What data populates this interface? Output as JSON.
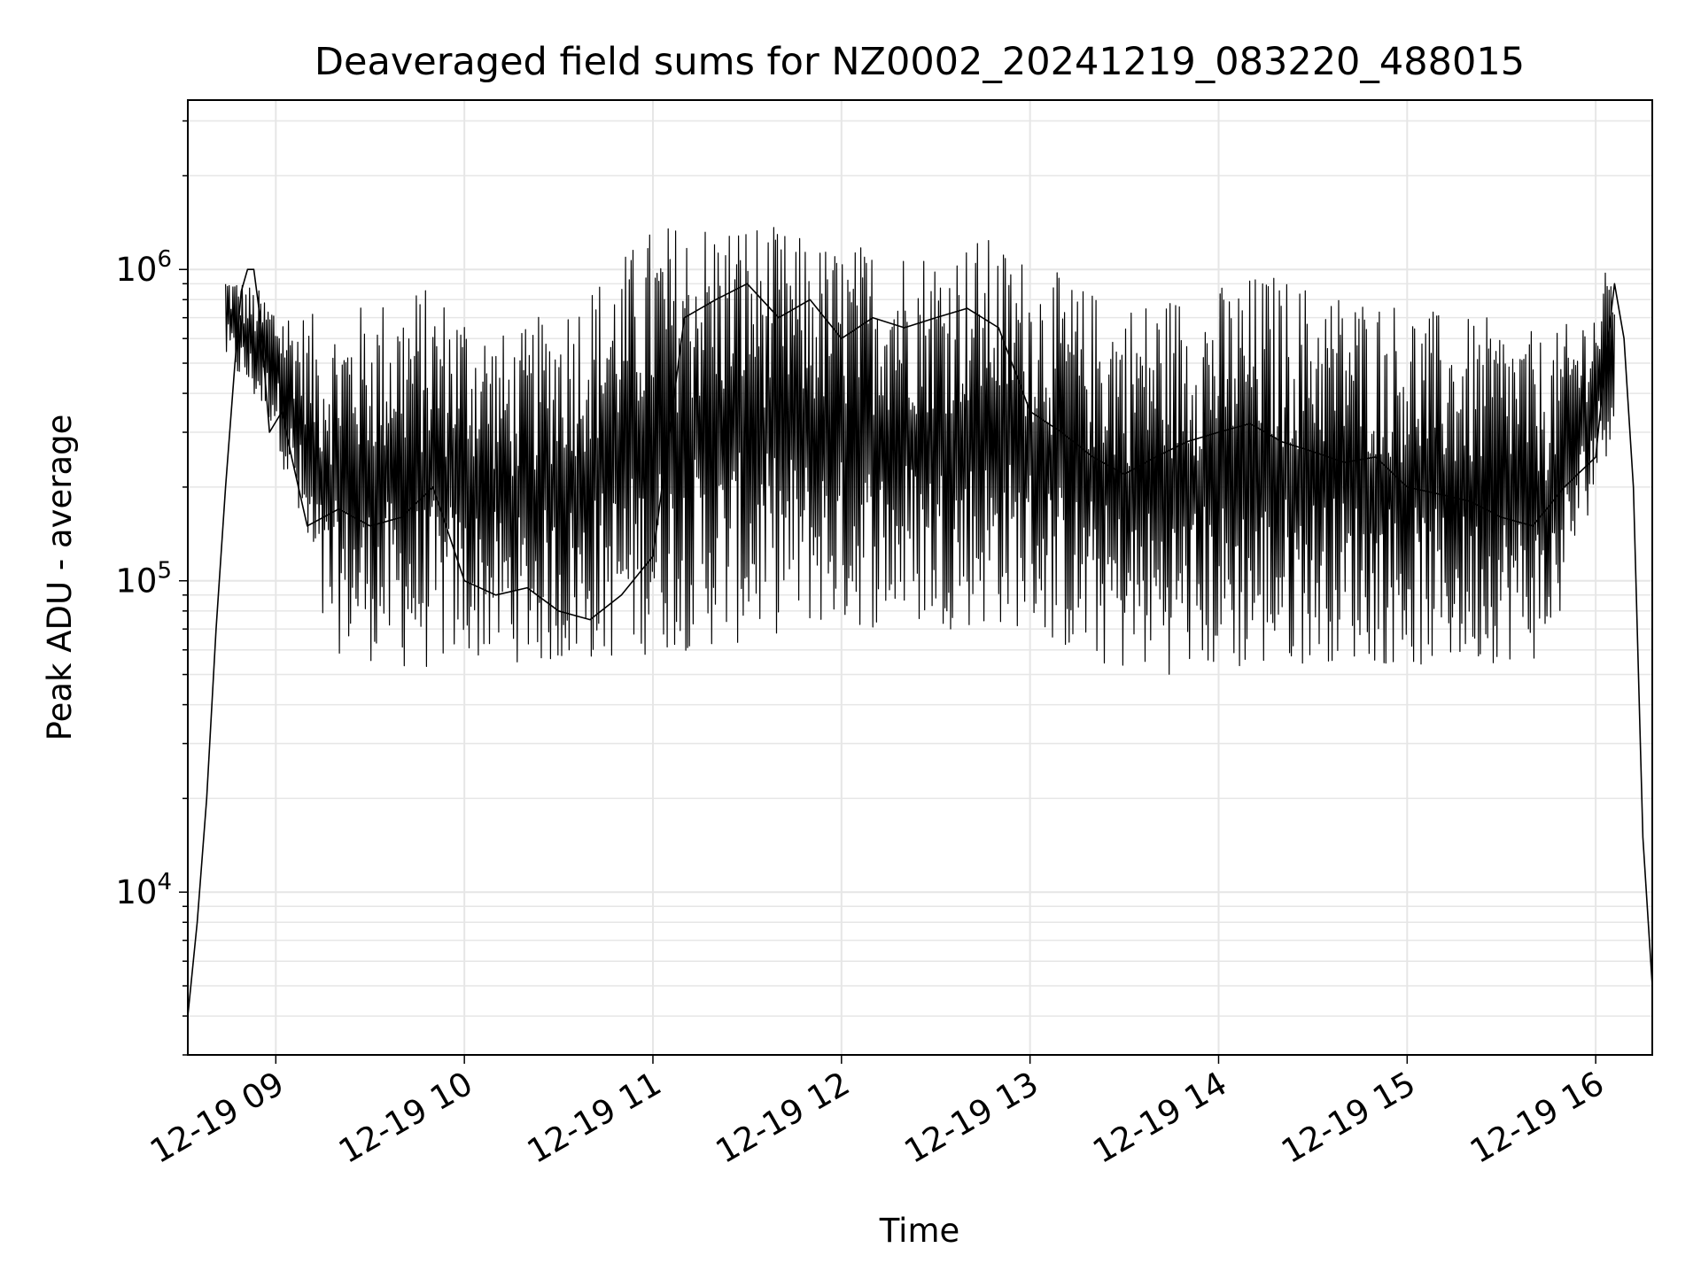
{
  "chart_data": {
    "type": "line",
    "title": "Deaveraged field sums for NZ0002_20241219_083220_488015",
    "xlabel": "Time",
    "ylabel": "Peak ADU - average",
    "y_scale": "log",
    "y_tick_values": [
      10000,
      100000,
      1000000
    ],
    "y_tick_labels": [
      {
        "base": "10",
        "exp": "4"
      },
      {
        "base": "10",
        "exp": "5"
      },
      {
        "base": "10",
        "exp": "6"
      }
    ],
    "ylim": [
      3000,
      3500000
    ],
    "x_range": [
      "2024-12-19 08:32",
      "2024-12-19 16:18"
    ],
    "x_tick_values": [
      "2024-12-19 09:00",
      "2024-12-19 10:00",
      "2024-12-19 11:00",
      "2024-12-19 12:00",
      "2024-12-19 13:00",
      "2024-12-19 14:00",
      "2024-12-19 15:00",
      "2024-12-19 16:00"
    ],
    "x_tick_labels": [
      "12-19 09",
      "12-19 10",
      "12-19 11",
      "12-19 12",
      "12-19 13",
      "12-19 14",
      "12-19 15",
      "12-19 16"
    ],
    "grid": true,
    "legend": "none",
    "series": [
      {
        "color": "#000000",
        "x": [
          "2024-12-19 08:32",
          "2024-12-19 08:35",
          "2024-12-19 08:38",
          "2024-12-19 08:41",
          "2024-12-19 08:44",
          "2024-12-19 08:47",
          "2024-12-19 08:49",
          "2024-12-19 08:51",
          "2024-12-19 08:53",
          "2024-12-19 08:55",
          "2024-12-19 08:58",
          "2024-12-19 09:02",
          "2024-12-19 09:05",
          "2024-12-19 09:10",
          "2024-12-19 09:20",
          "2024-12-19 09:30",
          "2024-12-19 09:40",
          "2024-12-19 09:50",
          "2024-12-19 10:00",
          "2024-12-19 10:10",
          "2024-12-19 10:20",
          "2024-12-19 10:30",
          "2024-12-19 10:40",
          "2024-12-19 10:50",
          "2024-12-19 11:00",
          "2024-12-19 11:10",
          "2024-12-19 11:20",
          "2024-12-19 11:30",
          "2024-12-19 11:40",
          "2024-12-19 11:50",
          "2024-12-19 12:00",
          "2024-12-19 12:10",
          "2024-12-19 12:20",
          "2024-12-19 12:30",
          "2024-12-19 12:40",
          "2024-12-19 12:50",
          "2024-12-19 13:00",
          "2024-12-19 13:10",
          "2024-12-19 13:20",
          "2024-12-19 13:30",
          "2024-12-19 13:40",
          "2024-12-19 13:50",
          "2024-12-19 14:00",
          "2024-12-19 14:10",
          "2024-12-19 14:20",
          "2024-12-19 14:30",
          "2024-12-19 14:40",
          "2024-12-19 14:50",
          "2024-12-19 15:00",
          "2024-12-19 15:10",
          "2024-12-19 15:20",
          "2024-12-19 15:30",
          "2024-12-19 15:40",
          "2024-12-19 15:50",
          "2024-12-19 16:00",
          "2024-12-19 16:03",
          "2024-12-19 16:06",
          "2024-12-19 16:09",
          "2024-12-19 16:12",
          "2024-12-19 16:15",
          "2024-12-19 16:18"
        ],
        "y": [
          4000,
          8000,
          20000,
          70000,
          200000,
          500000,
          850000,
          1000000,
          1000000,
          700000,
          300000,
          350000,
          250000,
          150000,
          170000,
          150000,
          160000,
          200000,
          100000,
          90000,
          95000,
          80000,
          75000,
          90000,
          120000,
          700000,
          800000,
          900000,
          700000,
          800000,
          600000,
          700000,
          650000,
          700000,
          750000,
          650000,
          350000,
          300000,
          250000,
          220000,
          250000,
          280000,
          300000,
          320000,
          280000,
          260000,
          240000,
          250000,
          200000,
          190000,
          180000,
          160000,
          150000,
          200000,
          250000,
          500000,
          900000,
          600000,
          200000,
          15000,
          5000
        ]
      }
    ],
    "trace_envelope": {
      "x": [
        "2024-12-19 08:44",
        "2024-12-19 09:00",
        "2024-12-19 09:15",
        "2024-12-19 09:30",
        "2024-12-19 09:45",
        "2024-12-19 10:00",
        "2024-12-19 10:15",
        "2024-12-19 10:30",
        "2024-12-19 10:45",
        "2024-12-19 11:00",
        "2024-12-19 11:15",
        "2024-12-19 11:30",
        "2024-12-19 11:45",
        "2024-12-19 12:00",
        "2024-12-19 12:15",
        "2024-12-19 12:30",
        "2024-12-19 12:45",
        "2024-12-19 13:00",
        "2024-12-19 13:15",
        "2024-12-19 13:30",
        "2024-12-19 13:45",
        "2024-12-19 14:00",
        "2024-12-19 14:15",
        "2024-12-19 14:30",
        "2024-12-19 14:45",
        "2024-12-19 15:00",
        "2024-12-19 15:15",
        "2024-12-19 15:30",
        "2024-12-19 15:45",
        "2024-12-19 16:00",
        "2024-12-19 16:06"
      ],
      "low": [
        500000,
        300000,
        60000,
        55000,
        50000,
        55000,
        55000,
        52000,
        55000,
        58000,
        60000,
        62000,
        70000,
        70000,
        70000,
        70000,
        70000,
        70000,
        55000,
        50000,
        50000,
        50000,
        50000,
        55000,
        55000,
        52000,
        52000,
        55000,
        55000,
        200000,
        300000
      ],
      "high": [
        1000000,
        800000,
        700000,
        800000,
        900000,
        800000,
        600000,
        800000,
        1000000,
        1400000,
        1500000,
        1500000,
        1300000,
        1200000,
        1250000,
        1200000,
        1300000,
        1100000,
        900000,
        800000,
        850000,
        900000,
        1000000,
        900000,
        850000,
        800000,
        700000,
        700000,
        600000,
        800000,
        1200000
      ]
    }
  }
}
